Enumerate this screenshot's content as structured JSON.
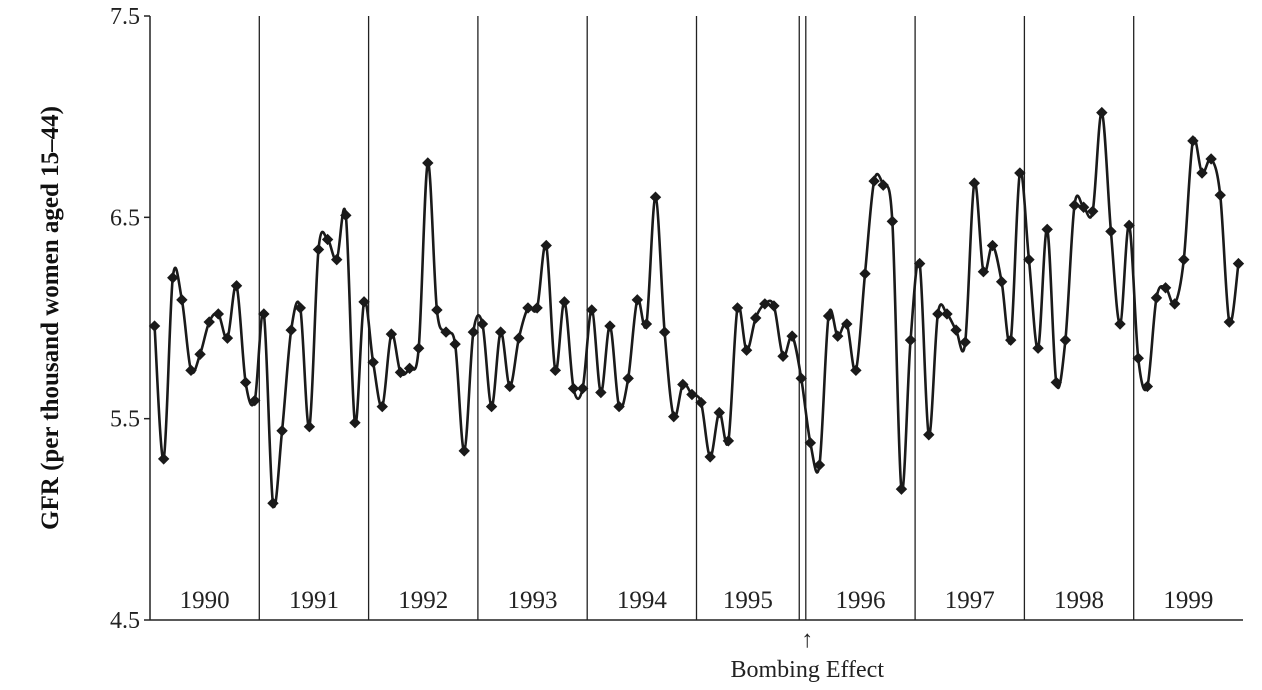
{
  "chart_data": {
    "type": "line",
    "title": "",
    "xlabel": "",
    "ylabel": "GFR (per thousand women aged 15–44)",
    "ylim": [
      4.5,
      7.5
    ],
    "yticks": [
      "7.5",
      "6.5",
      "5.5",
      "4.5"
    ],
    "ytick_values": [
      7.5,
      6.5,
      5.5,
      4.5
    ],
    "grid": false,
    "legend": "none",
    "years": [
      "1990",
      "1991",
      "1992",
      "1993",
      "1994",
      "1995",
      "1996",
      "1997",
      "1998",
      "1999"
    ],
    "annotation": {
      "text": "Bombing Effect",
      "arrow": "↑",
      "after_month_index": 71
    },
    "series": [
      {
        "values": [
          5.96,
          5.3,
          6.2,
          6.09,
          5.74,
          5.82,
          5.98,
          6.02,
          5.9,
          6.16,
          5.68,
          5.59,
          6.02,
          5.08,
          5.44,
          5.94,
          6.05,
          5.46,
          6.34,
          6.39,
          6.29,
          6.51,
          5.48,
          6.08,
          5.78,
          5.56,
          5.92,
          5.73,
          5.75,
          5.85,
          6.77,
          6.04,
          5.93,
          5.87,
          5.34,
          5.93,
          5.97,
          5.56,
          5.93,
          5.66,
          5.9,
          6.05,
          6.05,
          6.36,
          5.74,
          6.08,
          5.65,
          5.65,
          6.04,
          5.63,
          5.96,
          5.56,
          5.7,
          6.09,
          5.97,
          6.6,
          5.93,
          5.51,
          5.67,
          5.62,
          5.58,
          5.31,
          5.53,
          5.39,
          6.05,
          5.84,
          6.0,
          6.07,
          6.06,
          5.81,
          5.91,
          5.7,
          5.38,
          5.27,
          6.01,
          5.91,
          5.97,
          5.74,
          6.22,
          6.68,
          6.66,
          6.48,
          5.15,
          5.89,
          6.27,
          5.42,
          6.02,
          6.02,
          5.94,
          5.88,
          6.67,
          6.23,
          6.36,
          6.18,
          5.89,
          6.72,
          6.29,
          5.85,
          6.44,
          5.68,
          5.89,
          6.56,
          6.55,
          6.53,
          7.02,
          6.43,
          5.97,
          6.46,
          5.8,
          5.66,
          6.1,
          6.15,
          6.07,
          6.29,
          6.88,
          6.72,
          6.79,
          6.61,
          5.98,
          6.27
        ]
      }
    ]
  },
  "colors": {
    "line": "#1a1a1a",
    "marker": "#1a1a1a",
    "axis": "#222222",
    "background": "#ffffff"
  }
}
